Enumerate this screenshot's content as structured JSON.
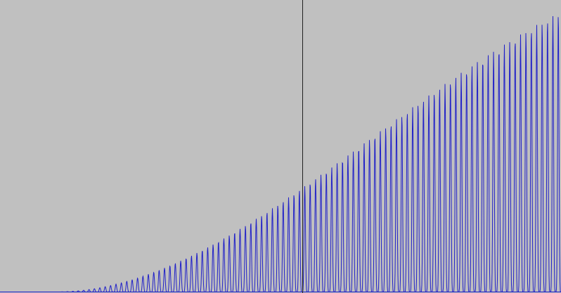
{
  "waveform": {
    "background_color": "#c0c0c0",
    "wave_color": "#2020c8",
    "baseline_color": "#2020c8",
    "cursor_color": "#202020",
    "cycle_count": 104,
    "cursor_fraction": 0.539,
    "envelope": {
      "shape": "smooth-rising-s-curve",
      "onset_fraction": 0.1,
      "end_amplitude": 0.96
    }
  }
}
